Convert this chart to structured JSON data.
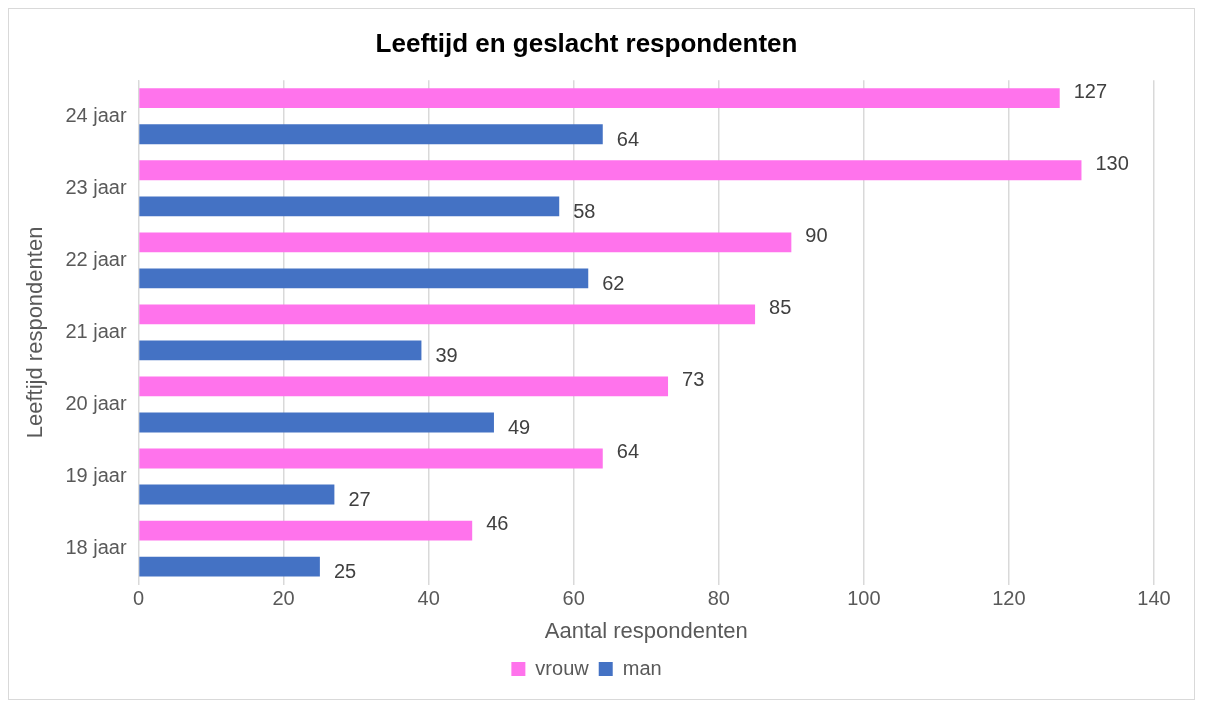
{
  "chart_data": {
    "type": "bar",
    "orientation": "horizontal",
    "title": "Leeftijd en geslacht respondenten",
    "xlabel": "Aantal respondenten",
    "ylabel": "Leeftijd respondenten",
    "categories": [
      "24 jaar",
      "23 jaar",
      "22 jaar",
      "21 jaar",
      "20 jaar",
      "19 jaar",
      "18 jaar"
    ],
    "series": [
      {
        "name": "vrouw",
        "color": "#ff73ec",
        "values": [
          127,
          130,
          90,
          85,
          73,
          64,
          46
        ]
      },
      {
        "name": "man",
        "color": "#4472c4",
        "values": [
          64,
          58,
          62,
          39,
          49,
          27,
          25
        ]
      }
    ],
    "xlim": [
      0,
      140
    ],
    "xticks": [
      0,
      20,
      40,
      60,
      80,
      100,
      120,
      140
    ],
    "grid": "x",
    "legend": "bottom",
    "data_labels": true
  }
}
